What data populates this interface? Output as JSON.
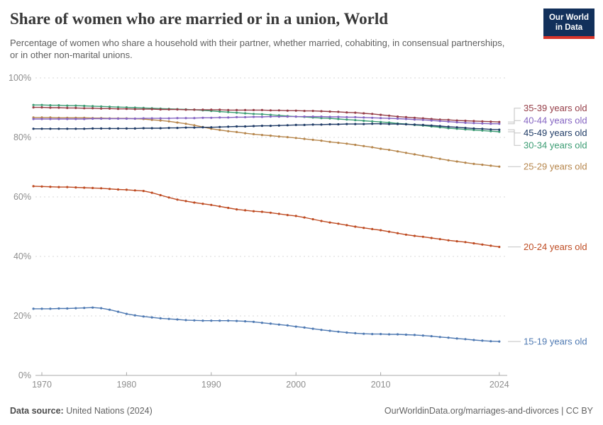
{
  "header": {
    "title": "Share of women who are married or in a union, World",
    "subtitle": "Percentage of women who share a household with their partner, whether married, cohabiting, in consensual partnerships, or in other non-marital unions.",
    "logo": {
      "line1": "Our World",
      "line2": "in Data",
      "bg_color": "#12305B",
      "accent_color": "#D8352B"
    }
  },
  "footer": {
    "source_label": "Data source:",
    "source_value": " United Nations (2024)",
    "credit": "OurWorldinData.org/marriages-and-divorces | CC BY"
  },
  "colors": {
    "grid": "#d9d9d9",
    "axis": "#a8a8a8",
    "tick_text": "#8e8e8e",
    "connector": "#c2c2c2"
  },
  "chart_data": {
    "type": "line",
    "title": "Share of women who are married or in a union, World",
    "xlabel": "",
    "ylabel": "",
    "ylim": [
      0,
      100
    ],
    "xlim": [
      1969,
      2025
    ],
    "y_ticks": [
      0,
      20,
      40,
      60,
      80,
      100
    ],
    "y_tick_suffix": "%",
    "x_ticks": [
      1970,
      1980,
      1990,
      2000,
      2010,
      2024
    ],
    "grid": "horizontal-dashed",
    "legend_position": "right-edge-labels",
    "marker": "point-per-year",
    "years": [
      1969,
      1970,
      1971,
      1972,
      1973,
      1974,
      1975,
      1976,
      1977,
      1978,
      1979,
      1980,
      1981,
      1982,
      1983,
      1984,
      1985,
      1986,
      1987,
      1988,
      1989,
      1990,
      1991,
      1992,
      1993,
      1994,
      1995,
      1996,
      1997,
      1998,
      1999,
      2000,
      2001,
      2002,
      2003,
      2004,
      2005,
      2006,
      2007,
      2008,
      2009,
      2010,
      2011,
      2012,
      2013,
      2014,
      2015,
      2016,
      2017,
      2018,
      2019,
      2020,
      2021,
      2022,
      2023,
      2024
    ],
    "series": [
      {
        "id": "15-19",
        "label": "15-19 years old",
        "color": "#4E79B2",
        "values": [
          22.4,
          22.4,
          22.4,
          22.5,
          22.5,
          22.6,
          22.7,
          22.8,
          22.6,
          22.1,
          21.4,
          20.7,
          20.2,
          19.8,
          19.5,
          19.2,
          19.0,
          18.8,
          18.6,
          18.5,
          18.4,
          18.4,
          18.4,
          18.4,
          18.3,
          18.2,
          18.0,
          17.7,
          17.4,
          17.1,
          16.8,
          16.4,
          16.1,
          15.7,
          15.3,
          15.0,
          14.7,
          14.4,
          14.2,
          14.0,
          13.9,
          13.9,
          13.8,
          13.8,
          13.7,
          13.6,
          13.4,
          13.2,
          12.9,
          12.7,
          12.4,
          12.2,
          11.9,
          11.7,
          11.5,
          11.4
        ]
      },
      {
        "id": "20-24",
        "label": "20-24 years old",
        "color": "#BE4B22",
        "values": [
          63.6,
          63.5,
          63.4,
          63.3,
          63.3,
          63.2,
          63.1,
          63.0,
          62.9,
          62.7,
          62.5,
          62.4,
          62.2,
          62.0,
          61.4,
          60.6,
          59.8,
          59.1,
          58.6,
          58.1,
          57.7,
          57.3,
          56.8,
          56.3,
          55.8,
          55.5,
          55.2,
          55.0,
          54.7,
          54.3,
          53.9,
          53.6,
          53.1,
          52.5,
          51.9,
          51.4,
          51.0,
          50.5,
          50.0,
          49.6,
          49.2,
          48.8,
          48.3,
          47.8,
          47.3,
          46.9,
          46.6,
          46.2,
          45.8,
          45.4,
          45.1,
          44.8,
          44.4,
          44.0,
          43.6,
          43.2
        ]
      },
      {
        "id": "25-29",
        "label": "25-29 years old",
        "color": "#B6864C",
        "values": [
          86.7,
          86.7,
          86.7,
          86.6,
          86.6,
          86.6,
          86.6,
          86.5,
          86.5,
          86.4,
          86.4,
          86.4,
          86.3,
          86.2,
          85.9,
          85.7,
          85.4,
          85.0,
          84.6,
          84.1,
          83.5,
          82.9,
          82.5,
          82.1,
          81.8,
          81.4,
          81.1,
          80.8,
          80.6,
          80.3,
          80.1,
          79.8,
          79.5,
          79.2,
          78.9,
          78.5,
          78.2,
          77.9,
          77.5,
          77.1,
          76.7,
          76.2,
          75.8,
          75.3,
          74.8,
          74.3,
          73.8,
          73.3,
          72.8,
          72.3,
          71.9,
          71.5,
          71.1,
          70.8,
          70.5,
          70.2
        ]
      },
      {
        "id": "30-34",
        "label": "30-34 years old",
        "color": "#3B9C73",
        "values": [
          90.9,
          90.9,
          90.8,
          90.8,
          90.7,
          90.7,
          90.6,
          90.5,
          90.4,
          90.3,
          90.2,
          90.1,
          90.0,
          89.9,
          89.8,
          89.7,
          89.6,
          89.5,
          89.4,
          89.3,
          89.1,
          88.9,
          88.7,
          88.5,
          88.3,
          88.1,
          87.9,
          87.8,
          87.6,
          87.4,
          87.2,
          87.0,
          86.9,
          86.7,
          86.5,
          86.4,
          86.2,
          86.0,
          85.8,
          85.6,
          85.4,
          85.2,
          85.0,
          84.7,
          84.5,
          84.2,
          84.0,
          83.7,
          83.4,
          83.1,
          82.9,
          82.7,
          82.5,
          82.3,
          82.1,
          81.9
        ]
      },
      {
        "id": "35-39",
        "label": "35-39 years old",
        "color": "#953D47",
        "values": [
          90.1,
          90.1,
          90.0,
          90.0,
          89.9,
          89.9,
          89.8,
          89.8,
          89.7,
          89.7,
          89.6,
          89.6,
          89.5,
          89.5,
          89.5,
          89.4,
          89.4,
          89.4,
          89.3,
          89.3,
          89.3,
          89.3,
          89.3,
          89.2,
          89.2,
          89.2,
          89.2,
          89.2,
          89.1,
          89.1,
          89.0,
          89.0,
          88.9,
          88.9,
          88.8,
          88.7,
          88.6,
          88.4,
          88.3,
          88.1,
          87.9,
          87.6,
          87.3,
          87.0,
          86.8,
          86.6,
          86.4,
          86.2,
          86.0,
          85.9,
          85.7,
          85.6,
          85.5,
          85.4,
          85.3,
          85.2
        ]
      },
      {
        "id": "40-44",
        "label": "40-44 years old",
        "color": "#8464C2",
        "values": [
          86.2,
          86.2,
          86.2,
          86.2,
          86.2,
          86.2,
          86.2,
          86.3,
          86.3,
          86.3,
          86.3,
          86.3,
          86.3,
          86.4,
          86.4,
          86.4,
          86.4,
          86.5,
          86.5,
          86.5,
          86.6,
          86.6,
          86.7,
          86.7,
          86.8,
          86.8,
          86.9,
          86.9,
          87.0,
          87.0,
          87.0,
          87.0,
          87.0,
          87.0,
          87.0,
          86.9,
          86.9,
          86.8,
          86.8,
          86.7,
          86.6,
          86.5,
          86.4,
          86.3,
          86.2,
          86.0,
          85.9,
          85.7,
          85.5,
          85.3,
          85.1,
          84.9,
          84.8,
          84.7,
          84.6,
          84.6
        ]
      },
      {
        "id": "45-49",
        "label": "45-49 years old",
        "color": "#1F3B66",
        "values": [
          82.9,
          82.9,
          82.9,
          82.9,
          82.9,
          82.9,
          82.9,
          83.0,
          83.0,
          83.0,
          83.0,
          83.0,
          83.0,
          83.1,
          83.1,
          83.1,
          83.2,
          83.2,
          83.3,
          83.3,
          83.4,
          83.4,
          83.5,
          83.6,
          83.7,
          83.7,
          83.8,
          83.9,
          83.9,
          84.0,
          84.1,
          84.2,
          84.2,
          84.3,
          84.3,
          84.4,
          84.4,
          84.5,
          84.5,
          84.5,
          84.6,
          84.6,
          84.5,
          84.5,
          84.4,
          84.3,
          84.2,
          84.0,
          83.8,
          83.6,
          83.4,
          83.2,
          83.0,
          82.9,
          82.7,
          82.6
        ]
      }
    ]
  }
}
